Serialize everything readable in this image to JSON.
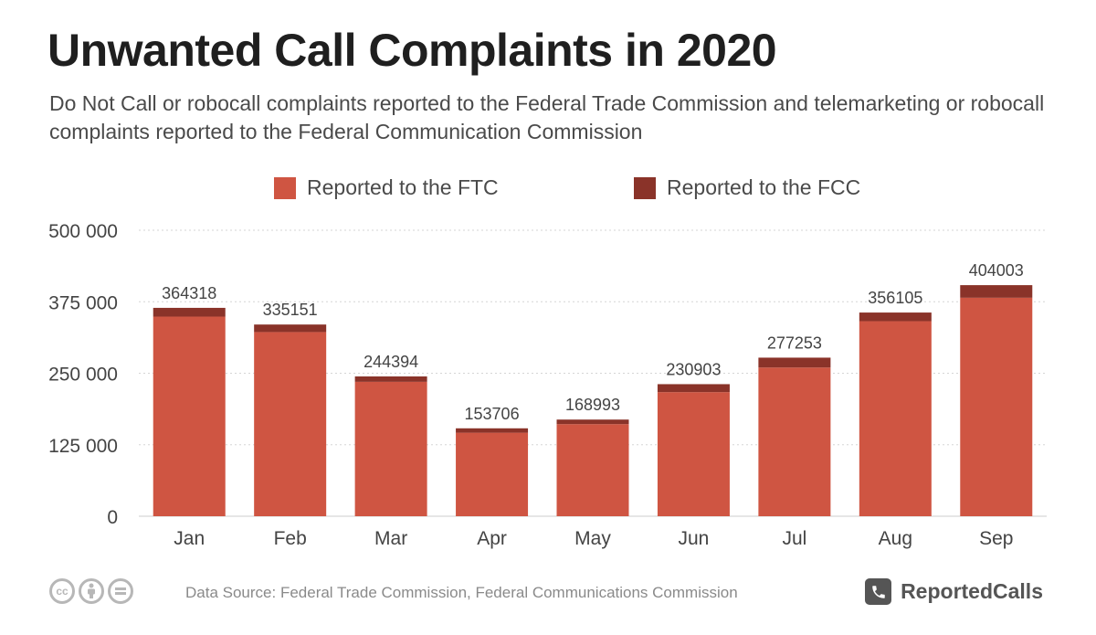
{
  "header": {
    "title": "Unwanted Call Complaints in 2020",
    "subtitle": "Do Not Call or robocall complaints reported to the Federal Trade Commission and telemarketing or robocall complaints reported to the Federal Communication Commission"
  },
  "legend": {
    "ftc_label": "Reported to the FTC",
    "fcc_label": "Reported to the FCC"
  },
  "colors": {
    "ftc": "#cf5542",
    "fcc": "#8a3329",
    "grid": "#d5d5d5",
    "text": "#444444"
  },
  "chart_data": {
    "type": "bar",
    "stacked": true,
    "categories": [
      "Jan",
      "Feb",
      "Mar",
      "Apr",
      "May",
      "Jun",
      "Jul",
      "Aug",
      "Sep"
    ],
    "series": [
      {
        "name": "Reported to the FTC",
        "values": [
          349000,
          322000,
          235000,
          146000,
          161000,
          217000,
          260000,
          341000,
          382000
        ]
      },
      {
        "name": "Reported to the FCC",
        "values": [
          15318,
          13151,
          9394,
          7706,
          7993,
          13903,
          17253,
          15105,
          22003
        ]
      }
    ],
    "totals": [
      "364318",
      "335151",
      "244394",
      "153706",
      "168993",
      "230903",
      "277253",
      "356105",
      "404003"
    ],
    "ylim": [
      0,
      500000
    ],
    "yticks": [
      0,
      125000,
      250000,
      375000,
      500000
    ],
    "ytick_labels": [
      "0",
      "125 000",
      "250 000",
      "375 000",
      "500 000"
    ],
    "grid": true,
    "legend_position": "top"
  },
  "footer": {
    "source": "Data Source: Federal Trade Commission, Federal Communications Commission",
    "brand": "ReportedCalls",
    "cc_icons": [
      "creative-commons-icon",
      "attribution-icon",
      "no-derivatives-icon"
    ]
  }
}
